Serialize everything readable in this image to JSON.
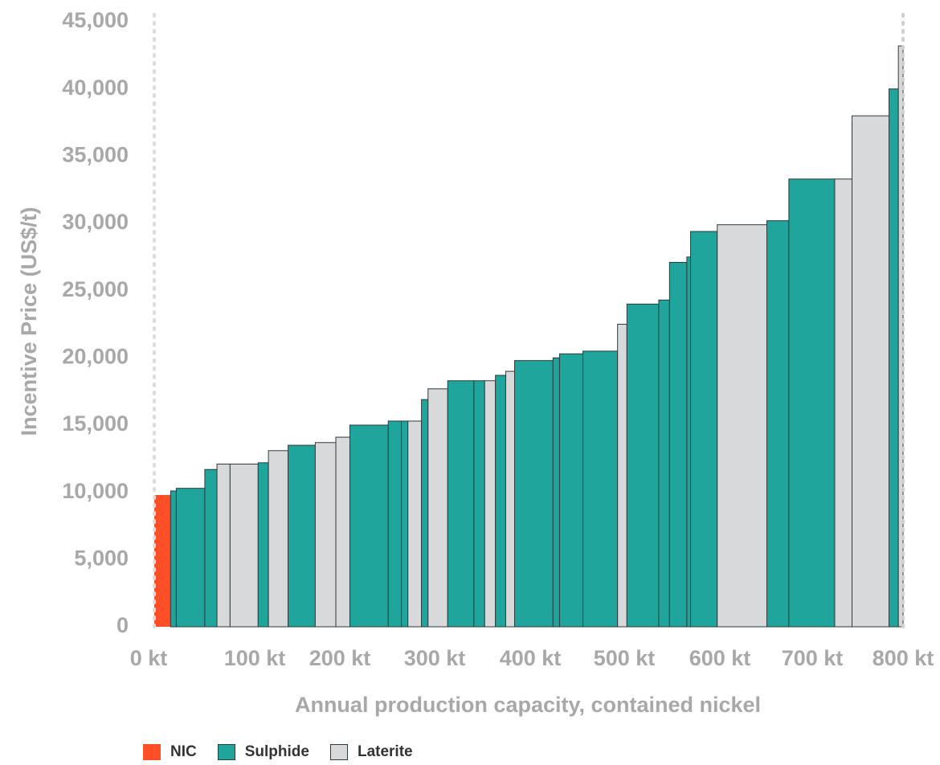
{
  "chart_data": {
    "type": "bar",
    "subtype": "cost-curve (variable-width bars)",
    "ylabel": "Incentive Price (US$/t)",
    "xlabel": "Annual production capacity, contained nickel",
    "ylim": [
      0,
      45000
    ],
    "xlim": [
      0,
      800
    ],
    "y_ticks": [
      "0",
      "5,000",
      "10,000",
      "15,000",
      "20,000",
      "25,000",
      "30,000",
      "35,000",
      "40,000",
      "45,000"
    ],
    "x_ticks": [
      {
        "value": 0,
        "label": "0 kt"
      },
      {
        "value": 100,
        "label": "100 kt"
      },
      {
        "value": 200,
        "label": "200 kt"
      },
      {
        "value": 300,
        "label": "300 kt"
      },
      {
        "value": 400,
        "label": "400 kt"
      },
      {
        "value": 500,
        "label": "500 kt"
      },
      {
        "value": 600,
        "label": "600 kt"
      },
      {
        "value": 700,
        "label": "700 kt"
      },
      {
        "value": 800,
        "label": "800 kt"
      }
    ],
    "legend": [
      {
        "name": "NIC",
        "color": "#ff4f27"
      },
      {
        "name": "Sulphide",
        "color": "#20a59c"
      },
      {
        "name": "Laterite",
        "color": "#d8d9db"
      }
    ],
    "legend_position": "bottom-left",
    "grid": false,
    "bars": [
      {
        "type": "NIC",
        "x0": 0,
        "x1": 17.5,
        "value": 9800
      },
      {
        "type": "Sulphide",
        "x0": 17.5,
        "x1": 23.5,
        "value": 10100
      },
      {
        "type": "Sulphide",
        "x0": 23.5,
        "x1": 54,
        "value": 10300
      },
      {
        "type": "Sulphide",
        "x0": 54,
        "x1": 67,
        "value": 11700
      },
      {
        "type": "Laterite",
        "x0": 67,
        "x1": 81,
        "value": 12100
      },
      {
        "type": "Laterite",
        "x0": 81,
        "x1": 111,
        "value": 12100
      },
      {
        "type": "Sulphide",
        "x0": 111,
        "x1": 122,
        "value": 12200
      },
      {
        "type": "Laterite",
        "x0": 122,
        "x1": 143,
        "value": 13100
      },
      {
        "type": "Sulphide",
        "x0": 143,
        "x1": 172,
        "value": 13500
      },
      {
        "type": "Laterite",
        "x0": 172,
        "x1": 194,
        "value": 13700
      },
      {
        "type": "Laterite",
        "x0": 194,
        "x1": 209,
        "value": 14100
      },
      {
        "type": "Sulphide",
        "x0": 209,
        "x1": 250,
        "value": 15000
      },
      {
        "type": "Sulphide",
        "x0": 250,
        "x1": 264,
        "value": 15300
      },
      {
        "type": "Sulphide",
        "x0": 264,
        "x1": 271,
        "value": 15300
      },
      {
        "type": "Laterite",
        "x0": 271,
        "x1": 285.5,
        "value": 15300
      },
      {
        "type": "Sulphide",
        "x0": 285.5,
        "x1": 292.5,
        "value": 16900
      },
      {
        "type": "Laterite",
        "x0": 292.5,
        "x1": 313.5,
        "value": 17700
      },
      {
        "type": "Sulphide",
        "x0": 313.5,
        "x1": 341.5,
        "value": 18300
      },
      {
        "type": "Sulphide",
        "x0": 341.5,
        "x1": 353,
        "value": 18300
      },
      {
        "type": "Laterite",
        "x0": 353,
        "x1": 364.5,
        "value": 18300
      },
      {
        "type": "Sulphide",
        "x0": 364.5,
        "x1": 375.5,
        "value": 18700
      },
      {
        "type": "Laterite",
        "x0": 375.5,
        "x1": 385,
        "value": 19000
      },
      {
        "type": "Sulphide",
        "x0": 385,
        "x1": 426,
        "value": 19800
      },
      {
        "type": "Sulphide",
        "x0": 426,
        "x1": 433,
        "value": 20000
      },
      {
        "type": "Sulphide",
        "x0": 433,
        "x1": 458,
        "value": 20300
      },
      {
        "type": "Sulphide",
        "x0": 458,
        "x1": 495,
        "value": 20500
      },
      {
        "type": "Laterite",
        "x0": 495,
        "x1": 505,
        "value": 22500
      },
      {
        "type": "Sulphide",
        "x0": 505,
        "x1": 539,
        "value": 24000
      },
      {
        "type": "Sulphide",
        "x0": 539,
        "x1": 550.5,
        "value": 24300
      },
      {
        "type": "Sulphide",
        "x0": 550.5,
        "x1": 569,
        "value": 27100
      },
      {
        "type": "Sulphide",
        "x0": 569,
        "x1": 573,
        "value": 27500
      },
      {
        "type": "Sulphide",
        "x0": 573,
        "x1": 601.5,
        "value": 29400
      },
      {
        "type": "Laterite",
        "x0": 601.5,
        "x1": 654.5,
        "value": 29900
      },
      {
        "type": "Sulphide",
        "x0": 654.5,
        "x1": 678,
        "value": 30200
      },
      {
        "type": "Sulphide",
        "x0": 678,
        "x1": 727,
        "value": 33300
      },
      {
        "type": "Laterite",
        "x0": 727,
        "x1": 745.5,
        "value": 33300
      },
      {
        "type": "Laterite",
        "x0": 745.5,
        "x1": 785,
        "value": 38000
      },
      {
        "type": "Sulphide",
        "x0": 785,
        "x1": 795,
        "value": 40000
      },
      {
        "type": "Laterite",
        "x0": 795,
        "x1": 800,
        "value": 43200
      }
    ]
  }
}
